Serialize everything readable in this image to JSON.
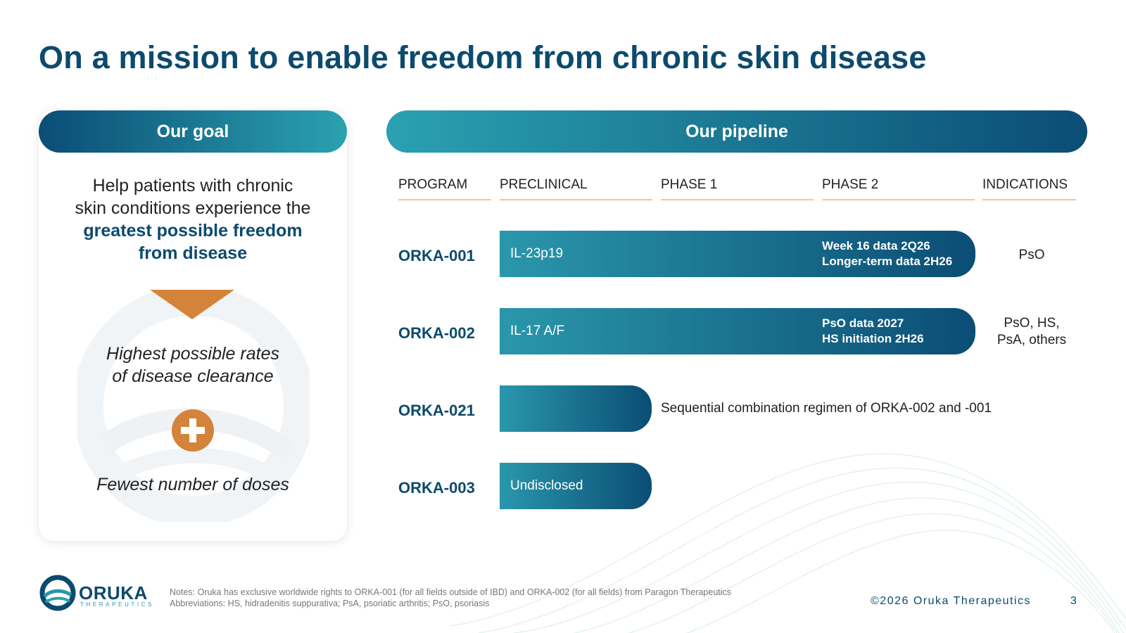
{
  "title": "On a mission to enable freedom from chronic skin disease",
  "goal": {
    "header": "Our goal",
    "text_line1": "Help patients with chronic",
    "text_line2": "skin conditions experience the",
    "highlight_line1": "greatest possible freedom",
    "highlight_line2": "from disease",
    "outcome1_line1": "Highest possible rates",
    "outcome1_line2": "of disease clearance",
    "outcome2": "Fewest number of doses",
    "icons": [
      "chevron-down-icon",
      "plus-circle-icon"
    ],
    "accent_color": "#d4843a"
  },
  "pipeline": {
    "header": "Our pipeline",
    "columns": [
      "PROGRAM",
      "PRECLINICAL",
      "PHASE 1",
      "PHASE 2",
      "INDICATIONS"
    ],
    "programs": [
      {
        "name": "ORKA-001",
        "target": "IL-23p19",
        "stage": "Phase 2",
        "milestone_line1": "Week 16 data 2Q26",
        "milestone_line2": "Longer-term data 2H26",
        "indication_line1": "PsO",
        "indication_line2": ""
      },
      {
        "name": "ORKA-002",
        "target": "IL-17 A/F",
        "stage": "Phase 2",
        "milestone_line1": "PsO data 2027",
        "milestone_line2": "HS initiation 2H26",
        "indication_line1": "PsO, HS,",
        "indication_line2": "PsA, others"
      },
      {
        "name": "ORKA-021",
        "target": "",
        "stage": "Preclinical",
        "note": "Sequential combination regimen of ORKA-002 and -001"
      },
      {
        "name": "ORKA-003",
        "target": "Undisclosed",
        "stage": "Preclinical"
      }
    ],
    "bar_colors": [
      "#2a97ab",
      "#0b4d75"
    ]
  },
  "footer": {
    "logo_word": "ORUKA",
    "logo_sub": "THERAPEUTICS",
    "notes_line1": "Notes: Oruka has exclusive worldwide rights to ORKA-001 (for all fields outside of IBD) and ORKA-002 (for all fields) from Paragon Therapeutics",
    "notes_line2": "Abbreviations: HS, hidradenitis suppurativa; PsA, psoriatic arthritis; PsO, psoriasis",
    "copyright": "©2026 Oruka Therapeutics",
    "page": "3"
  },
  "colors": {
    "title": "#0c4a6e",
    "gradient_dark": "#0b4d75",
    "gradient_light": "#2aa1b1",
    "column_rule": "#f2c59c"
  }
}
